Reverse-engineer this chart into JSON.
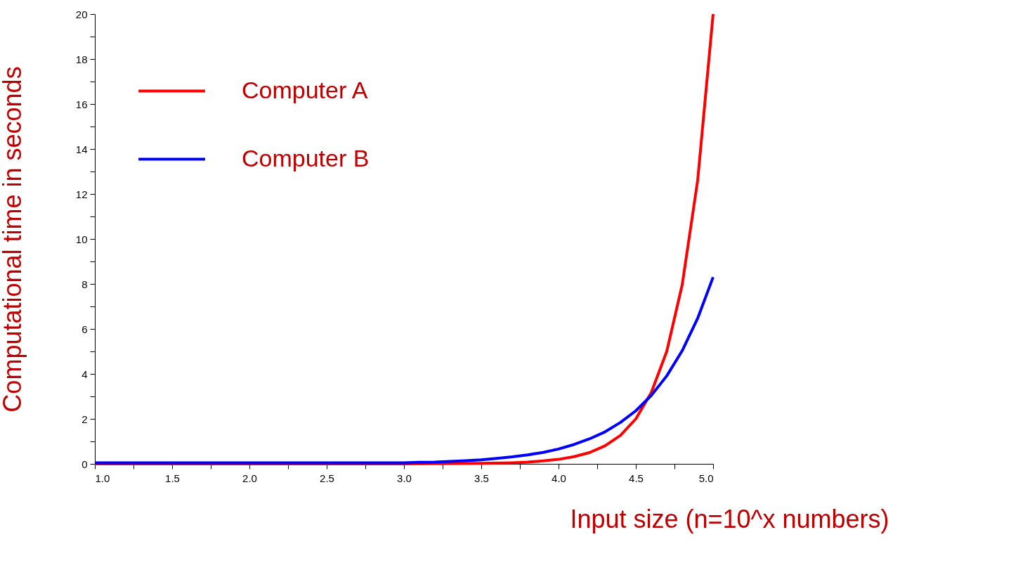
{
  "chart_data": {
    "type": "line",
    "xlabel": "Input size (n=10^x numbers)",
    "ylabel": "Computational time in seconds",
    "series": [
      {
        "name": "Computer A",
        "color": "#ff0000",
        "x": [
          1.0,
          2.0,
          3.0,
          3.5,
          3.7,
          3.8,
          3.9,
          4.0,
          4.1,
          4.2,
          4.3,
          4.4,
          4.5,
          4.6,
          4.7,
          4.8,
          4.9,
          5.0
        ],
        "values": [
          0,
          0,
          0,
          0.02,
          0.05,
          0.08,
          0.13,
          0.2,
          0.32,
          0.5,
          0.8,
          1.26,
          2.0,
          3.17,
          5.0,
          7.96,
          12.6,
          20
        ]
      },
      {
        "name": "Computer B",
        "color": "#0000ff",
        "x": [
          1.0,
          2.0,
          3.0,
          3.1,
          3.2,
          3.3,
          3.4,
          3.5,
          3.6,
          3.7,
          3.8,
          3.9,
          4.0,
          4.1,
          4.2,
          4.3,
          4.4,
          4.5,
          4.6,
          4.7,
          4.8,
          4.9,
          5.0
        ],
        "values": [
          0.05,
          0.05,
          0.05,
          0.07,
          0.08,
          0.11,
          0.14,
          0.18,
          0.24,
          0.31,
          0.4,
          0.51,
          0.66,
          0.86,
          1.11,
          1.42,
          1.84,
          2.36,
          3.04,
          3.91,
          5.03,
          6.47,
          8.3
        ]
      }
    ],
    "xlim": [
      1.0,
      5.0
    ],
    "ylim": [
      0,
      20
    ],
    "xticks": [
      {
        "value": 1.0,
        "label": "1.0"
      },
      {
        "value": 1.25,
        "label": null
      },
      {
        "value": 1.5,
        "label": "1.5"
      },
      {
        "value": 1.75,
        "label": null
      },
      {
        "value": 2.0,
        "label": "2.0"
      },
      {
        "value": 2.25,
        "label": null
      },
      {
        "value": 2.5,
        "label": "2.5"
      },
      {
        "value": 2.75,
        "label": null
      },
      {
        "value": 3.0,
        "label": "3.0"
      },
      {
        "value": 3.25,
        "label": null
      },
      {
        "value": 3.5,
        "label": "3.5"
      },
      {
        "value": 3.75,
        "label": null
      },
      {
        "value": 4.0,
        "label": "4.0"
      },
      {
        "value": 4.25,
        "label": null
      },
      {
        "value": 4.5,
        "label": "4.5"
      },
      {
        "value": 4.75,
        "label": null
      },
      {
        "value": 5.0,
        "label": "5.0"
      }
    ],
    "yticks": [
      0,
      {
        "value": 1,
        "label": null
      },
      2,
      {
        "value": 3,
        "label": null
      },
      4,
      {
        "value": 5,
        "label": null
      },
      6,
      {
        "value": 7,
        "label": null
      },
      8,
      {
        "value": 9,
        "label": null
      },
      10,
      {
        "value": 11,
        "label": null
      },
      12,
      {
        "value": 13,
        "label": null
      },
      14,
      {
        "value": 15,
        "label": null
      },
      16,
      {
        "value": 17,
        "label": null
      },
      18,
      {
        "value": 19,
        "label": null
      },
      20
    ],
    "grid": false,
    "legend": "top left",
    "marker": "none",
    "line_style": "solid"
  }
}
